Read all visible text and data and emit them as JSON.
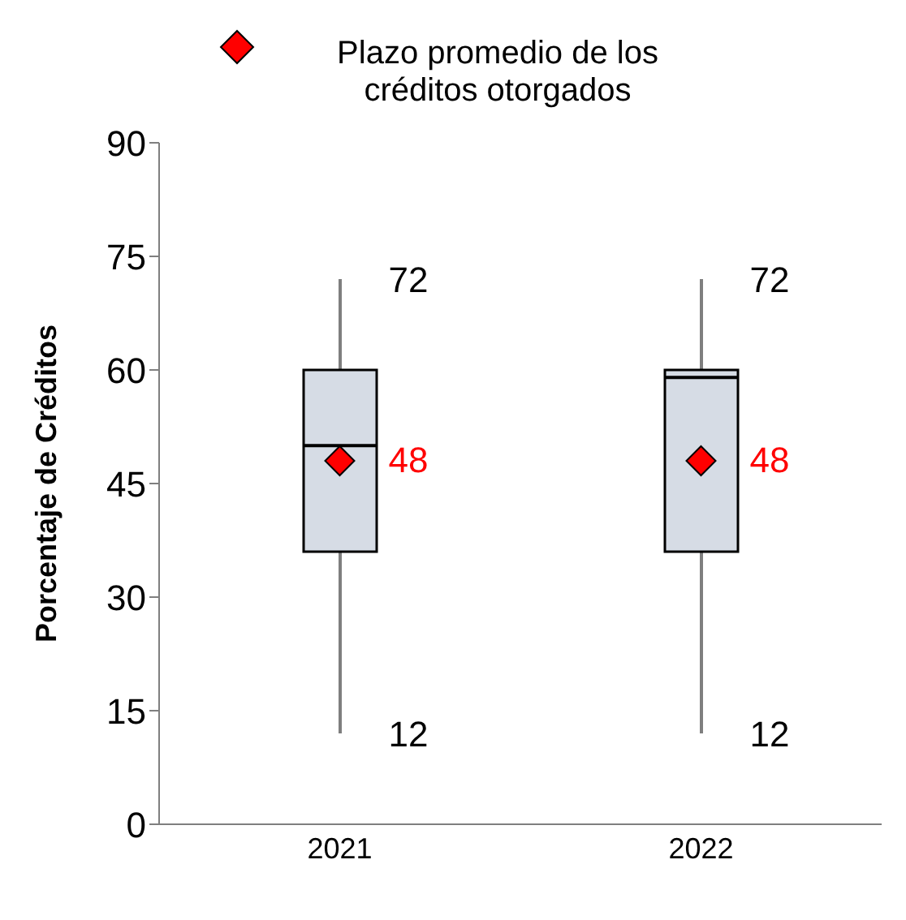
{
  "chart_data": {
    "type": "box",
    "ylabel": "Porcentaje de Créditos",
    "categories": [
      "2021",
      "2022"
    ],
    "series": [
      {
        "color": "#d6dce5",
        "boxes": [
          {
            "low": 12,
            "q1": 36,
            "median": 50,
            "q3": 60,
            "high": 72
          },
          {
            "low": 12,
            "q1": 36,
            "median": 59,
            "q3": 60,
            "high": 72
          }
        ]
      },
      {
        "type": "scatter",
        "name": "Plazo promedio de los créditos otorgados",
        "color": "#ff0000",
        "values": [
          48,
          48
        ],
        "value_labels": [
          "48",
          "48"
        ],
        "marker": "diamond"
      }
    ],
    "ylim": [
      0,
      90
    ],
    "yticks": [
      0,
      15,
      30,
      45,
      60,
      75,
      90
    ],
    "annotations": [
      {
        "text": "72",
        "x": "2021",
        "y": 72
      },
      {
        "text": "12",
        "x": "2021",
        "y": 12
      },
      {
        "text": "72",
        "x": "2022",
        "y": 72
      },
      {
        "text": "12",
        "x": "2022",
        "y": 12
      }
    ],
    "grid": false,
    "legend": "top"
  }
}
